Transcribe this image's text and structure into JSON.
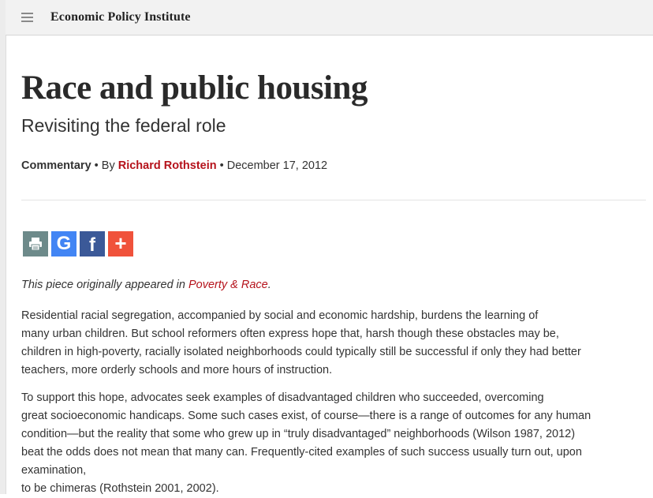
{
  "header": {
    "brand": "Economic Policy Institute",
    "menu_icon": "hamburger-icon"
  },
  "article": {
    "title": "Race and public housing",
    "subtitle": "Revisiting the federal role",
    "type": "Commentary",
    "by_prefix": "• By",
    "author": "Richard Rothstein",
    "date": "• December 17, 2012",
    "share": {
      "print_icon": "print-icon",
      "google_icon": "google-icon",
      "google_glyph": "G",
      "facebook_icon": "facebook-icon",
      "facebook_glyph": "f",
      "more_icon": "plus-icon",
      "more_glyph": "+"
    },
    "intro_prefix": "This piece originally appeared in ",
    "intro_link": "Poverty & Race",
    "intro_suffix": ".",
    "paragraph1": [
      "Residential racial segregation, accompanied by social and economic hardship, burdens the learning of",
      "many urban children. But school reformers often express hope that, harsh though these obstacles may be,",
      "children in high-poverty, racially isolated neighborhoods could typically still be successful if only they had better",
      "teachers, more orderly schools and more hours of instruction."
    ],
    "paragraph2": [
      "To support this hope, advocates seek examples of disadvantaged children who succeeded, overcoming",
      "great socioeconomic handicaps. Some such cases exist, of course—there is a range of outcomes for any human",
      "condition—but the reality that some who grew up in “truly disadvantaged” neighborhoods (Wilson 1987, 2012)",
      "beat the odds does not mean that many can. Frequently-cited examples of such success usually turn out, upon",
      "examination,",
      "to be chimeras (Rothstein 2001, 2002)."
    ]
  },
  "colors": {
    "accent_red": "#b5121b",
    "print": "#6d8a8a",
    "google": "#4285f4",
    "facebook": "#3b5998",
    "more": "#f0523b"
  }
}
